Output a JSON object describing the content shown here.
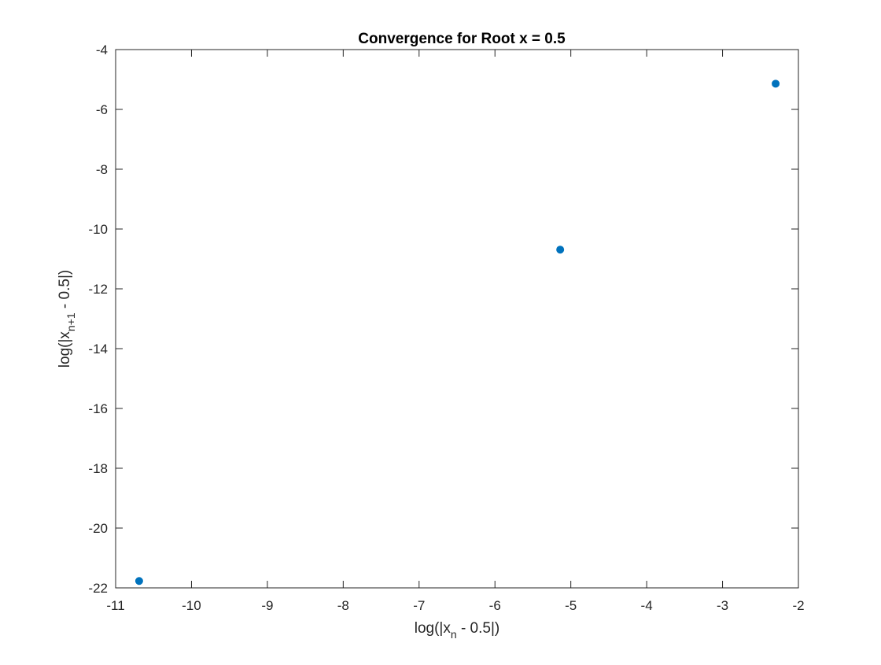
{
  "chart_data": {
    "type": "scatter",
    "title": "Convergence for Root x = 0.5",
    "xlabel": {
      "pre": "log(|x",
      "sub": "n",
      "post": " - 0.5|)"
    },
    "ylabel": {
      "pre": "log(|x",
      "sub": "n+1",
      "post": " - 0.5|)"
    },
    "xlim": [
      -11,
      -2
    ],
    "ylim": [
      -22,
      -4
    ],
    "xticks": [
      -11,
      -10,
      -9,
      -8,
      -7,
      -6,
      -5,
      -4,
      -3,
      -2
    ],
    "yticks": [
      -22,
      -20,
      -18,
      -16,
      -14,
      -12,
      -10,
      -8,
      -6,
      -4
    ],
    "series": [
      {
        "x": [
          -2.3,
          -5.14,
          -10.69
        ],
        "y": [
          -5.14,
          -10.69,
          -21.77
        ]
      }
    ],
    "marker": "filled-circle",
    "marker_color": "#0072BD",
    "grid": false,
    "legend": "none"
  }
}
